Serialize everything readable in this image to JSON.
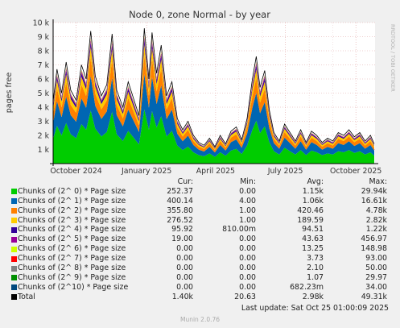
{
  "chart_data": {
    "type": "area",
    "title": "Node 0, zone Normal - by year",
    "ylabel": "pages free",
    "side_label": "RRDTOOL / TOBI OETIKER",
    "ylim": [
      0,
      10000
    ],
    "y_ticks": [
      {
        "value": 0,
        "label": ""
      },
      {
        "value": 1000,
        "label": "1 k"
      },
      {
        "value": 2000,
        "label": "2 k"
      },
      {
        "value": 3000,
        "label": "3 k"
      },
      {
        "value": 4000,
        "label": "4 k"
      },
      {
        "value": 5000,
        "label": "5 k"
      },
      {
        "value": 6000,
        "label": "6 k"
      },
      {
        "value": 7000,
        "label": "7 k"
      },
      {
        "value": 8000,
        "label": "8 k"
      },
      {
        "value": 9000,
        "label": "9 k"
      },
      {
        "value": 10000,
        "label": "10 k"
      }
    ],
    "x_range": [
      "2024-09-01",
      "2025-10-26"
    ],
    "x_ticks": [
      {
        "date": "2024-10-01",
        "label": "October 2024"
      },
      {
        "date": "2025-01-01",
        "label": "January 2025"
      },
      {
        "date": "2025-04-01",
        "label": "April 2025"
      },
      {
        "date": "2025-07-01",
        "label": "July 2025"
      },
      {
        "date": "2025-10-01",
        "label": "October 2025"
      }
    ],
    "x_minor_dates": [
      "2024-11-01",
      "2024-12-01",
      "2025-02-01",
      "2025-03-01",
      "2025-05-01",
      "2025-06-01",
      "2025-08-01",
      "2025-09-01"
    ],
    "total_profile": [
      {
        "date": "2024-09-01",
        "value": 4400
      },
      {
        "date": "2024-09-06",
        "value": 6700
      },
      {
        "date": "2024-09-12",
        "value": 5000
      },
      {
        "date": "2024-09-18",
        "value": 7200
      },
      {
        "date": "2024-09-24",
        "value": 5200
      },
      {
        "date": "2024-10-01",
        "value": 4500
      },
      {
        "date": "2024-10-08",
        "value": 7000
      },
      {
        "date": "2024-10-14",
        "value": 6000
      },
      {
        "date": "2024-10-20",
        "value": 9400
      },
      {
        "date": "2024-10-26",
        "value": 6200
      },
      {
        "date": "2024-11-03",
        "value": 4800
      },
      {
        "date": "2024-11-10",
        "value": 5600
      },
      {
        "date": "2024-11-17",
        "value": 9200
      },
      {
        "date": "2024-11-23",
        "value": 5200
      },
      {
        "date": "2024-12-01",
        "value": 4000
      },
      {
        "date": "2024-12-08",
        "value": 5800
      },
      {
        "date": "2024-12-15",
        "value": 4600
      },
      {
        "date": "2024-12-22",
        "value": 3400
      },
      {
        "date": "2024-12-29",
        "value": 9600
      },
      {
        "date": "2025-01-04",
        "value": 6000
      },
      {
        "date": "2025-01-08",
        "value": 9300
      },
      {
        "date": "2025-01-14",
        "value": 6400
      },
      {
        "date": "2025-01-20",
        "value": 8400
      },
      {
        "date": "2025-01-27",
        "value": 4800
      },
      {
        "date": "2025-02-03",
        "value": 5800
      },
      {
        "date": "2025-02-10",
        "value": 3200
      },
      {
        "date": "2025-02-17",
        "value": 2400
      },
      {
        "date": "2025-02-24",
        "value": 3000
      },
      {
        "date": "2025-03-03",
        "value": 2000
      },
      {
        "date": "2025-03-10",
        "value": 1500
      },
      {
        "date": "2025-03-17",
        "value": 1300
      },
      {
        "date": "2025-03-24",
        "value": 1800
      },
      {
        "date": "2025-03-31",
        "value": 1200
      },
      {
        "date": "2025-04-07",
        "value": 2000
      },
      {
        "date": "2025-04-14",
        "value": 1400
      },
      {
        "date": "2025-04-21",
        "value": 2300
      },
      {
        "date": "2025-04-28",
        "value": 2600
      },
      {
        "date": "2025-05-05",
        "value": 1700
      },
      {
        "date": "2025-05-12",
        "value": 3200
      },
      {
        "date": "2025-05-19",
        "value": 6000
      },
      {
        "date": "2025-05-24",
        "value": 7600
      },
      {
        "date": "2025-05-29",
        "value": 5400
      },
      {
        "date": "2025-06-04",
        "value": 6600
      },
      {
        "date": "2025-06-10",
        "value": 3800
      },
      {
        "date": "2025-06-16",
        "value": 2200
      },
      {
        "date": "2025-06-23",
        "value": 1600
      },
      {
        "date": "2025-06-30",
        "value": 2800
      },
      {
        "date": "2025-07-07",
        "value": 2200
      },
      {
        "date": "2025-07-14",
        "value": 1600
      },
      {
        "date": "2025-07-21",
        "value": 2400
      },
      {
        "date": "2025-07-28",
        "value": 1500
      },
      {
        "date": "2025-08-04",
        "value": 2300
      },
      {
        "date": "2025-08-11",
        "value": 2000
      },
      {
        "date": "2025-08-18",
        "value": 1500
      },
      {
        "date": "2025-08-25",
        "value": 1800
      },
      {
        "date": "2025-09-01",
        "value": 1600
      },
      {
        "date": "2025-09-08",
        "value": 2200
      },
      {
        "date": "2025-09-15",
        "value": 2000
      },
      {
        "date": "2025-09-22",
        "value": 2400
      },
      {
        "date": "2025-09-29",
        "value": 1900
      },
      {
        "date": "2025-10-06",
        "value": 2200
      },
      {
        "date": "2025-10-13",
        "value": 1600
      },
      {
        "date": "2025-10-20",
        "value": 2000
      },
      {
        "date": "2025-10-25",
        "value": 1400
      }
    ],
    "series": [
      {
        "name": "Chunks of (2^ 0) * Page size",
        "color": "#00cc00",
        "cur": "252.37",
        "min": "0.00",
        "avg": "1.15k",
        "max": "29.94k"
      },
      {
        "name": "Chunks of (2^ 1) * Page size",
        "color": "#0066b3",
        "cur": "400.14",
        "min": "4.00",
        "avg": "1.06k",
        "max": "16.61k"
      },
      {
        "name": "Chunks of (2^ 2) * Page size",
        "color": "#ff8000",
        "cur": "355.80",
        "min": "1.00",
        "avg": "420.46",
        "max": "4.78k"
      },
      {
        "name": "Chunks of (2^ 3) * Page size",
        "color": "#ffcc00",
        "cur": "276.52",
        "min": "1.00",
        "avg": "189.59",
        "max": "2.82k"
      },
      {
        "name": "Chunks of (2^ 4) * Page size",
        "color": "#330099",
        "cur": "95.92",
        "min": "810.00m",
        "avg": "94.51",
        "max": "1.22k"
      },
      {
        "name": "Chunks of (2^ 5) * Page size",
        "color": "#990099",
        "cur": "19.00",
        "min": "0.00",
        "avg": "43.63",
        "max": "456.97"
      },
      {
        "name": "Chunks of (2^ 6) * Page size",
        "color": "#ccff00",
        "cur": "0.00",
        "min": "0.00",
        "avg": "13.25",
        "max": "148.98"
      },
      {
        "name": "Chunks of (2^ 7) * Page size",
        "color": "#ff0000",
        "cur": "0.00",
        "min": "0.00",
        "avg": "3.73",
        "max": "93.00"
      },
      {
        "name": "Chunks of (2^ 8) * Page size",
        "color": "#808080",
        "cur": "0.00",
        "min": "0.00",
        "avg": "2.10",
        "max": "50.00"
      },
      {
        "name": "Chunks of (2^ 9) * Page size",
        "color": "#008f00",
        "cur": "0.00",
        "min": "0.00",
        "avg": "1.07",
        "max": "29.97"
      },
      {
        "name": "Chunks of (2^10) * Page size",
        "color": "#00487d",
        "cur": "0.00",
        "min": "0.00",
        "avg": "682.23m",
        "max": "34.00"
      }
    ],
    "total": {
      "name": "Total",
      "color": "#000000",
      "cur": "1.40k",
      "min": "20.63",
      "avg": "2.98k",
      "max": "49.31k"
    },
    "columns": {
      "cur": "Cur:",
      "min": "Min:",
      "avg": "Avg:",
      "max": "Max:"
    },
    "grid": true,
    "legend": "bottom"
  },
  "footer": {
    "last_update": "Last update: Sat Oct 25 01:00:09 2025",
    "generator": "Munin 2.0.76"
  }
}
